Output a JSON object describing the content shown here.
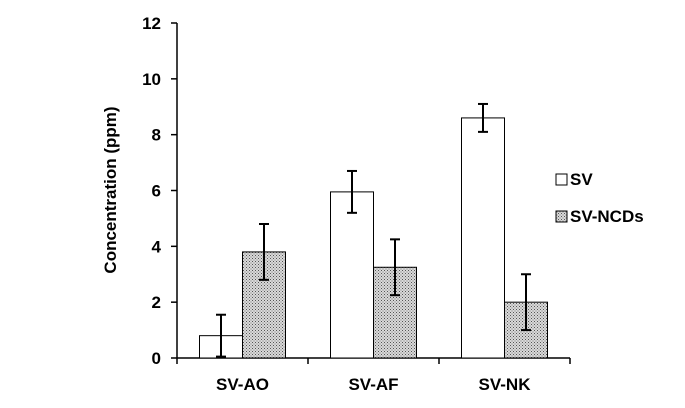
{
  "chart_data": {
    "type": "bar",
    "title": "",
    "xlabel": "",
    "ylabel": "Concentration  (ppm)",
    "ylim": [
      0,
      12
    ],
    "yticks": [
      0,
      2,
      4,
      6,
      8,
      10,
      12
    ],
    "grid": false,
    "legend_position": "right",
    "categories": [
      "SV-AO",
      "SV-AF",
      "SV-NK"
    ],
    "series": [
      {
        "name": "SV",
        "fill": "#ffffff",
        "pattern": "none",
        "values": [
          0.8,
          5.95,
          8.6
        ],
        "error": [
          0.75,
          0.75,
          0.5
        ]
      },
      {
        "name": "SV-NCDs",
        "fill": "#d9d9d9",
        "pattern": "dots",
        "values": [
          3.8,
          3.25,
          2.0
        ],
        "error": [
          1.0,
          1.0,
          1.0
        ]
      }
    ]
  }
}
